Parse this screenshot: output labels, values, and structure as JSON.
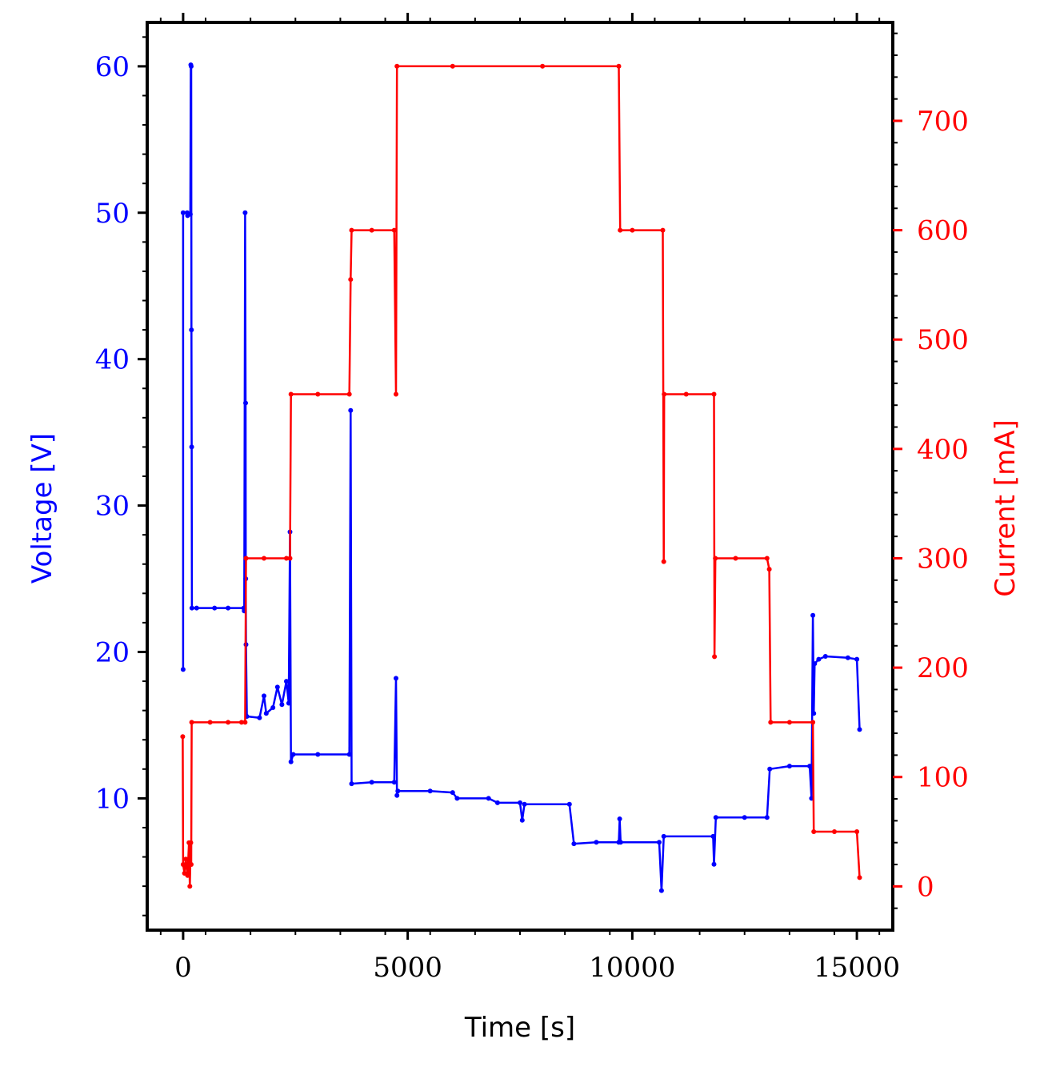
{
  "chart_data": {
    "type": "line",
    "title": "",
    "xlabel": "Time [s]",
    "xlim": [
      -800,
      15800
    ],
    "xticks": [
      "0",
      "5000",
      "10000",
      "15000"
    ],
    "y_left": {
      "label": "Voltage [V]",
      "color": "#0000ff",
      "ylim": [
        1,
        63
      ],
      "ticks": [
        "10",
        "20",
        "30",
        "40",
        "50",
        "60"
      ]
    },
    "y_right": {
      "label": "Current [mA]",
      "color": "#ff0000",
      "ylim": [
        -40,
        790
      ],
      "ticks": [
        "0",
        "100",
        "200",
        "300",
        "400",
        "500",
        "600",
        "700"
      ]
    },
    "grid": false,
    "markers": "small dots",
    "series": [
      {
        "name": "Voltage [V]",
        "axis": "left",
        "color": "#0000ff",
        "points": [
          [
            0,
            18.8
          ],
          [
            0,
            50.0
          ],
          [
            90,
            50.0
          ],
          [
            100,
            49.8
          ],
          [
            160,
            49.9
          ],
          [
            170,
            60.1
          ],
          [
            180,
            60.0
          ],
          [
            185,
            42.0
          ],
          [
            190,
            34.0
          ],
          [
            195,
            23.0
          ],
          [
            300,
            23.0
          ],
          [
            700,
            23.0
          ],
          [
            1000,
            23.0
          ],
          [
            1350,
            23.0
          ],
          [
            1360,
            22.8
          ],
          [
            1380,
            50.0
          ],
          [
            1390,
            37.0
          ],
          [
            1395,
            25.0
          ],
          [
            1400,
            20.5
          ],
          [
            1420,
            15.6
          ],
          [
            1700,
            15.5
          ],
          [
            1800,
            17.0
          ],
          [
            1850,
            15.8
          ],
          [
            2000,
            16.2
          ],
          [
            2100,
            17.6
          ],
          [
            2200,
            16.4
          ],
          [
            2300,
            18.0
          ],
          [
            2350,
            16.5
          ],
          [
            2380,
            28.2
          ],
          [
            2400,
            12.5
          ],
          [
            2450,
            13.0
          ],
          [
            3000,
            13.0
          ],
          [
            3700,
            13.0
          ],
          [
            3730,
            36.5
          ],
          [
            3750,
            11.0
          ],
          [
            4200,
            11.1
          ],
          [
            4700,
            11.1
          ],
          [
            4740,
            18.2
          ],
          [
            4760,
            10.2
          ],
          [
            4780,
            10.5
          ],
          [
            5500,
            10.5
          ],
          [
            6000,
            10.4
          ],
          [
            6100,
            10.0
          ],
          [
            6800,
            10.0
          ],
          [
            7000,
            9.7
          ],
          [
            7500,
            9.7
          ],
          [
            7550,
            8.5
          ],
          [
            7600,
            9.6
          ],
          [
            8600,
            9.6
          ],
          [
            8700,
            6.9
          ],
          [
            9200,
            7.0
          ],
          [
            9700,
            7.0
          ],
          [
            9720,
            8.6
          ],
          [
            9740,
            7.0
          ],
          [
            10600,
            7.0
          ],
          [
            10650,
            3.7
          ],
          [
            10700,
            7.4
          ],
          [
            11800,
            7.4
          ],
          [
            11820,
            5.5
          ],
          [
            11860,
            8.7
          ],
          [
            12500,
            8.7
          ],
          [
            13000,
            8.7
          ],
          [
            13060,
            12.0
          ],
          [
            13500,
            12.2
          ],
          [
            13950,
            12.2
          ],
          [
            13990,
            10.0
          ],
          [
            14020,
            22.5
          ],
          [
            14040,
            15.8
          ],
          [
            14060,
            19.2
          ],
          [
            14150,
            19.5
          ],
          [
            14300,
            19.7
          ],
          [
            14800,
            19.6
          ],
          [
            15000,
            19.5
          ],
          [
            15060,
            14.7
          ]
        ]
      },
      {
        "name": "Current [mA]",
        "axis": "right",
        "color": "#ff0000",
        "points": [
          [
            -10,
            137
          ],
          [
            0,
            20
          ],
          [
            30,
            12
          ],
          [
            60,
            25
          ],
          [
            100,
            10
          ],
          [
            130,
            40
          ],
          [
            150,
            0
          ],
          [
            170,
            40
          ],
          [
            180,
            20
          ],
          [
            190,
            150
          ],
          [
            600,
            150
          ],
          [
            1000,
            150
          ],
          [
            1300,
            150
          ],
          [
            1380,
            150
          ],
          [
            1400,
            300
          ],
          [
            1800,
            300
          ],
          [
            2300,
            300
          ],
          [
            2380,
            300
          ],
          [
            2400,
            450
          ],
          [
            3000,
            450
          ],
          [
            3700,
            450
          ],
          [
            3730,
            555
          ],
          [
            3750,
            600
          ],
          [
            4200,
            600
          ],
          [
            4700,
            600
          ],
          [
            4740,
            450
          ],
          [
            4760,
            750
          ],
          [
            6000,
            750
          ],
          [
            8000,
            750
          ],
          [
            9700,
            750
          ],
          [
            9730,
            600
          ],
          [
            10000,
            600
          ],
          [
            10680,
            600
          ],
          [
            10700,
            297
          ],
          [
            10710,
            450
          ],
          [
            11200,
            450
          ],
          [
            11820,
            450
          ],
          [
            11830,
            210
          ],
          [
            11850,
            300
          ],
          [
            12300,
            300
          ],
          [
            13000,
            300
          ],
          [
            13050,
            290
          ],
          [
            13080,
            150
          ],
          [
            13500,
            150
          ],
          [
            14020,
            150
          ],
          [
            14040,
            50
          ],
          [
            14500,
            50
          ],
          [
            15000,
            50
          ],
          [
            15060,
            8
          ]
        ]
      }
    ]
  }
}
